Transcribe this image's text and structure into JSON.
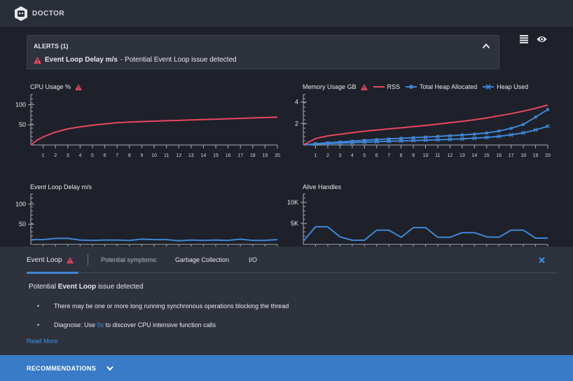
{
  "header": {
    "title": "DOCTOR"
  },
  "alerts": {
    "title": "ALERTS (1)",
    "items": [
      {
        "metric": "Event Loop Delay m/s",
        "message": "- Potential Event Loop issue detected"
      }
    ]
  },
  "colors": {
    "red": "#e8465f",
    "blue": "#3f86d6",
    "accent_blue": "#3a7bc8",
    "axis": "#a6abb5"
  },
  "icons": {
    "logo": "doctor-logo",
    "warning": "warning-triangle-icon",
    "collapse": "chevron-up-icon",
    "list": "list-icon",
    "eye": "eye-icon",
    "close": "close-icon",
    "expand": "chevron-down-icon"
  },
  "chart_data": [
    {
      "type": "line",
      "title": "CPU Usage %",
      "x": [
        1,
        2,
        3,
        4,
        5,
        6,
        7,
        8,
        9,
        10,
        11,
        12,
        13,
        14,
        15,
        16,
        17,
        18,
        19,
        20
      ],
      "yticks": [
        50,
        100
      ],
      "ylim": [
        0,
        125
      ],
      "xlim": [
        0,
        20
      ],
      "series": [
        {
          "color": "#e8465f",
          "points": [
            [
              0,
              0
            ],
            [
              0.5,
              12
            ],
            [
              1,
              20
            ],
            [
              1.5,
              26
            ],
            [
              2,
              32
            ],
            [
              3,
              40
            ],
            [
              4,
              45
            ],
            [
              5,
              49
            ],
            [
              6,
              52
            ],
            [
              7,
              55
            ],
            [
              8,
              57
            ],
            [
              9,
              58
            ],
            [
              10,
              59
            ],
            [
              11,
              60
            ],
            [
              12,
              61
            ],
            [
              13,
              62
            ],
            [
              14,
              63
            ],
            [
              15,
              64
            ],
            [
              16,
              65
            ],
            [
              17,
              66
            ],
            [
              18,
              67
            ],
            [
              19,
              68
            ],
            [
              20,
              69
            ]
          ]
        }
      ]
    },
    {
      "type": "line",
      "title": "Memory Usage GB",
      "x": [
        1,
        2,
        3,
        4,
        5,
        6,
        7,
        8,
        9,
        10,
        11,
        12,
        13,
        14,
        15,
        16,
        17,
        18,
        19,
        20
      ],
      "yticks": [
        2,
        4
      ],
      "ylim": [
        0,
        4.7
      ],
      "xlim": [
        0,
        20
      ],
      "legend": [
        "RSS",
        "Total Heap Allocated",
        "Heap Used"
      ],
      "series": [
        {
          "name": "RSS",
          "color": "#e8465f",
          "marker": "none",
          "points": [
            [
              0,
              0
            ],
            [
              1,
              0.6
            ],
            [
              2,
              0.85
            ],
            [
              3,
              1.0
            ],
            [
              4,
              1.15
            ],
            [
              5,
              1.28
            ],
            [
              6,
              1.4
            ],
            [
              7,
              1.5
            ],
            [
              8,
              1.6
            ],
            [
              9,
              1.72
            ],
            [
              10,
              1.82
            ],
            [
              11,
              1.95
            ],
            [
              12,
              2.08
            ],
            [
              13,
              2.2
            ],
            [
              14,
              2.35
            ],
            [
              15,
              2.52
            ],
            [
              16,
              2.72
            ],
            [
              17,
              2.92
            ],
            [
              18,
              3.15
            ],
            [
              19,
              3.42
            ],
            [
              20,
              3.72
            ]
          ]
        },
        {
          "name": "Total Heap Allocated",
          "color": "#3f86d6",
          "marker": "square",
          "points": [
            [
              0,
              0
            ],
            [
              1,
              0.12
            ],
            [
              2,
              0.2
            ],
            [
              3,
              0.28
            ],
            [
              4,
              0.36
            ],
            [
              5,
              0.43
            ],
            [
              6,
              0.5
            ],
            [
              7,
              0.56
            ],
            [
              8,
              0.62
            ],
            [
              9,
              0.68
            ],
            [
              10,
              0.74
            ],
            [
              11,
              0.8
            ],
            [
              12,
              0.86
            ],
            [
              13,
              0.93
            ],
            [
              14,
              1.01
            ],
            [
              15,
              1.12
            ],
            [
              16,
              1.3
            ],
            [
              17,
              1.55
            ],
            [
              18,
              1.92
            ],
            [
              19,
              2.6
            ],
            [
              20,
              3.3
            ]
          ]
        },
        {
          "name": "Heap Used",
          "color": "#3f86d6",
          "marker": "x",
          "points": [
            [
              0,
              0
            ],
            [
              1,
              0.08
            ],
            [
              2,
              0.13
            ],
            [
              3,
              0.18
            ],
            [
              4,
              0.22
            ],
            [
              5,
              0.26
            ],
            [
              6,
              0.3
            ],
            [
              7,
              0.34
            ],
            [
              8,
              0.38
            ],
            [
              9,
              0.41
            ],
            [
              10,
              0.45
            ],
            [
              11,
              0.48
            ],
            [
              12,
              0.52
            ],
            [
              13,
              0.57
            ],
            [
              14,
              0.63
            ],
            [
              15,
              0.7
            ],
            [
              16,
              0.8
            ],
            [
              17,
              0.95
            ],
            [
              18,
              1.13
            ],
            [
              19,
              1.4
            ],
            [
              20,
              1.75
            ]
          ]
        }
      ]
    },
    {
      "type": "line",
      "title": "Event Loop Delay m/s",
      "yticks": [
        50,
        100
      ],
      "ylim": [
        0,
        125
      ],
      "xlim": [
        0,
        20
      ],
      "series": [
        {
          "color": "#3f86d6",
          "points": [
            [
              0,
              12
            ],
            [
              1,
              12
            ],
            [
              2,
              15
            ],
            [
              3,
              15
            ],
            [
              4,
              11
            ],
            [
              5,
              10
            ],
            [
              6,
              11
            ],
            [
              7,
              11
            ],
            [
              8,
              10
            ],
            [
              9,
              13
            ],
            [
              10,
              12
            ],
            [
              11,
              12
            ],
            [
              12,
              9
            ],
            [
              13,
              11
            ],
            [
              14,
              10
            ],
            [
              15,
              11
            ],
            [
              16,
              10
            ],
            [
              17,
              13
            ],
            [
              18,
              10
            ],
            [
              19,
              10
            ],
            [
              20,
              12
            ]
          ]
        }
      ]
    },
    {
      "type": "line",
      "title": "Alive Handles",
      "yticks": [
        "5K",
        "10K"
      ],
      "ylim": [
        0,
        12000
      ],
      "xlim": [
        0,
        20
      ],
      "series": [
        {
          "color": "#3f86d6",
          "points": [
            [
              0,
              800
            ],
            [
              1,
              4200
            ],
            [
              2,
              4200
            ],
            [
              3,
              1800
            ],
            [
              4,
              1000
            ],
            [
              5,
              1000
            ],
            [
              6,
              3400
            ],
            [
              7,
              3400
            ],
            [
              8,
              1700
            ],
            [
              9,
              4000
            ],
            [
              10,
              4000
            ],
            [
              11,
              1700
            ],
            [
              12,
              1700
            ],
            [
              13,
              2800
            ],
            [
              14,
              2800
            ],
            [
              15,
              1800
            ],
            [
              16,
              1700
            ],
            [
              17,
              3400
            ],
            [
              18,
              3400
            ],
            [
              19,
              1500
            ],
            [
              20,
              1500
            ]
          ]
        }
      ]
    }
  ],
  "panel": {
    "active_tab": "Event Loop",
    "symptoms_label": "Potential symptoms:",
    "symptom_tabs": [
      "Garbage Collection",
      "I/O"
    ],
    "issue_prefix": "Potential",
    "issue_name": "Event Loop",
    "issue_suffix": "issue detected",
    "bullets": [
      {
        "text": "There may be one or more long running synchronous operations blocking the thread"
      },
      {
        "before": "Diagnose: Use",
        "link": "0x",
        "after": "to discover CPU intensive function calls"
      }
    ],
    "read_more": "Read More"
  },
  "recommendations": {
    "label": "RECOMMENDATIONS"
  }
}
